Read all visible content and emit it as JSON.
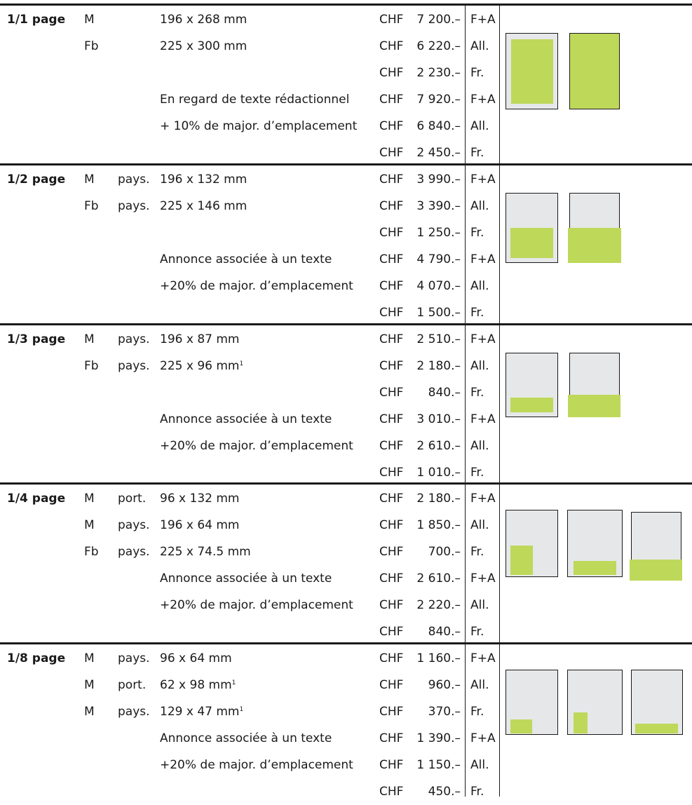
{
  "colors": {
    "ad_fill": "#bed85a",
    "page_grey": "#e6e7e8",
    "rule": "#1a1a1a"
  },
  "sections": [
    {
      "label": "1/1 page",
      "rows": [
        {
          "code": "M",
          "orient": "",
          "desc": "196 x 268 mm",
          "sup": "",
          "chf": "CHF",
          "amount": "7 200.–",
          "lang": "F+A"
        },
        {
          "code": "Fb",
          "orient": "",
          "desc": "225 x 300 mm",
          "sup": "",
          "chf": "CHF",
          "amount": "6 220.–",
          "lang": "All."
        },
        {
          "code": "",
          "orient": "",
          "desc": "",
          "sup": "",
          "chf": "CHF",
          "amount": "2 230.–",
          "lang": "Fr."
        },
        {
          "code": "",
          "orient": "",
          "desc": "En regard de texte rédactionnel",
          "sup": "",
          "chf": "CHF",
          "amount": "7 920.–",
          "lang": "F+A"
        },
        {
          "code": "",
          "orient": "",
          "desc": "+ 10% de major. d’emplacement",
          "sup": "",
          "chf": "CHF",
          "amount": "6 840.–",
          "lang": "All."
        },
        {
          "code": "",
          "orient": "",
          "desc": "",
          "sup": "",
          "chf": "CHF",
          "amount": "2 450.–",
          "lang": "Fr."
        }
      ]
    },
    {
      "label": "1/2 page",
      "rows": [
        {
          "code": "M",
          "orient": "pays.",
          "desc": "196 x 132 mm",
          "sup": "",
          "chf": "CHF",
          "amount": "3 990.–",
          "lang": "F+A"
        },
        {
          "code": "Fb",
          "orient": "pays.",
          "desc": "225 x 146 mm",
          "sup": "",
          "chf": "CHF",
          "amount": "3 390.–",
          "lang": "All."
        },
        {
          "code": "",
          "orient": "",
          "desc": "",
          "sup": "",
          "chf": "CHF",
          "amount": "1 250.–",
          "lang": "Fr."
        },
        {
          "code": "",
          "orient": "",
          "desc": "Annonce associée à un texte",
          "sup": "",
          "chf": "CHF",
          "amount": "4 790.–",
          "lang": "F+A"
        },
        {
          "code": "",
          "orient": "",
          "desc": "+20% de major. d’emplacement",
          "sup": "",
          "chf": "CHF",
          "amount": "4 070.–",
          "lang": "All."
        },
        {
          "code": "",
          "orient": "",
          "desc": "",
          "sup": "",
          "chf": "CHF",
          "amount": "1 500.–",
          "lang": "Fr."
        }
      ]
    },
    {
      "label": "1/3 page",
      "rows": [
        {
          "code": "M",
          "orient": "pays.",
          "desc": "196 x 87 mm",
          "sup": "",
          "chf": "CHF",
          "amount": "2 510.–",
          "lang": "F+A"
        },
        {
          "code": "Fb",
          "orient": "pays.",
          "desc": "225 x 96 mm",
          "sup": "1",
          "chf": "CHF",
          "amount": "2 180.–",
          "lang": "All."
        },
        {
          "code": "",
          "orient": "",
          "desc": "",
          "sup": "",
          "chf": "CHF",
          "amount": "840.–",
          "lang": "Fr."
        },
        {
          "code": "",
          "orient": "",
          "desc": "Annonce associée à un texte",
          "sup": "",
          "chf": "CHF",
          "amount": "3 010.–",
          "lang": "F+A"
        },
        {
          "code": "",
          "orient": "",
          "desc": "+20% de major. d’emplacement",
          "sup": "",
          "chf": "CHF",
          "amount": "2 610.–",
          "lang": "All."
        },
        {
          "code": "",
          "orient": "",
          "desc": "",
          "sup": "",
          "chf": "CHF",
          "amount": "1 010.–",
          "lang": "Fr."
        }
      ]
    },
    {
      "label": "1/4 page",
      "rows": [
        {
          "code": "M",
          "orient": "port.",
          "desc": "96 x 132 mm",
          "sup": "",
          "chf": "CHF",
          "amount": "2 180.–",
          "lang": "F+A"
        },
        {
          "code": "M",
          "orient": "pays.",
          "desc": "196 x 64 mm",
          "sup": "",
          "chf": "CHF",
          "amount": "1 850.–",
          "lang": "All."
        },
        {
          "code": "Fb",
          "orient": "pays.",
          "desc": "225 x 74.5 mm",
          "sup": "",
          "chf": "CHF",
          "amount": "700.–",
          "lang": "Fr."
        },
        {
          "code": "",
          "orient": "",
          "desc": "Annonce associée à un texte",
          "sup": "",
          "chf": "CHF",
          "amount": "2 610.–",
          "lang": "F+A"
        },
        {
          "code": "",
          "orient": "",
          "desc": "+20% de major. d’emplacement",
          "sup": "",
          "chf": "CHF",
          "amount": "2 220.–",
          "lang": "All."
        },
        {
          "code": "",
          "orient": "",
          "desc": "",
          "sup": "",
          "chf": "CHF",
          "amount": "840.–",
          "lang": "Fr."
        }
      ]
    },
    {
      "label": "1/8 page",
      "rows": [
        {
          "code": "M",
          "orient": "pays.",
          "desc": "96 x 64 mm",
          "sup": "",
          "chf": "CHF",
          "amount": "1 160.–",
          "lang": "F+A"
        },
        {
          "code": "M",
          "orient": "port.",
          "desc": "62 x 98 mm",
          "sup": "1",
          "chf": "CHF",
          "amount": "960.–",
          "lang": "All."
        },
        {
          "code": "M",
          "orient": "pays.",
          "desc": "129 x 47 mm",
          "sup": "1",
          "chf": "CHF",
          "amount": "370.–",
          "lang": "Fr."
        },
        {
          "code": "",
          "orient": "",
          "desc": "Annonce associée à un texte",
          "sup": "",
          "chf": "CHF",
          "amount": "1 390.–",
          "lang": "F+A"
        },
        {
          "code": "",
          "orient": "",
          "desc": "+20% de major. d’emplacement",
          "sup": "",
          "chf": "CHF",
          "amount": "1 150.–",
          "lang": "All."
        },
        {
          "code": "",
          "orient": "",
          "desc": "",
          "sup": "",
          "chf": "CHF",
          "amount": "450.–",
          "lang": "Fr."
        }
      ]
    }
  ]
}
